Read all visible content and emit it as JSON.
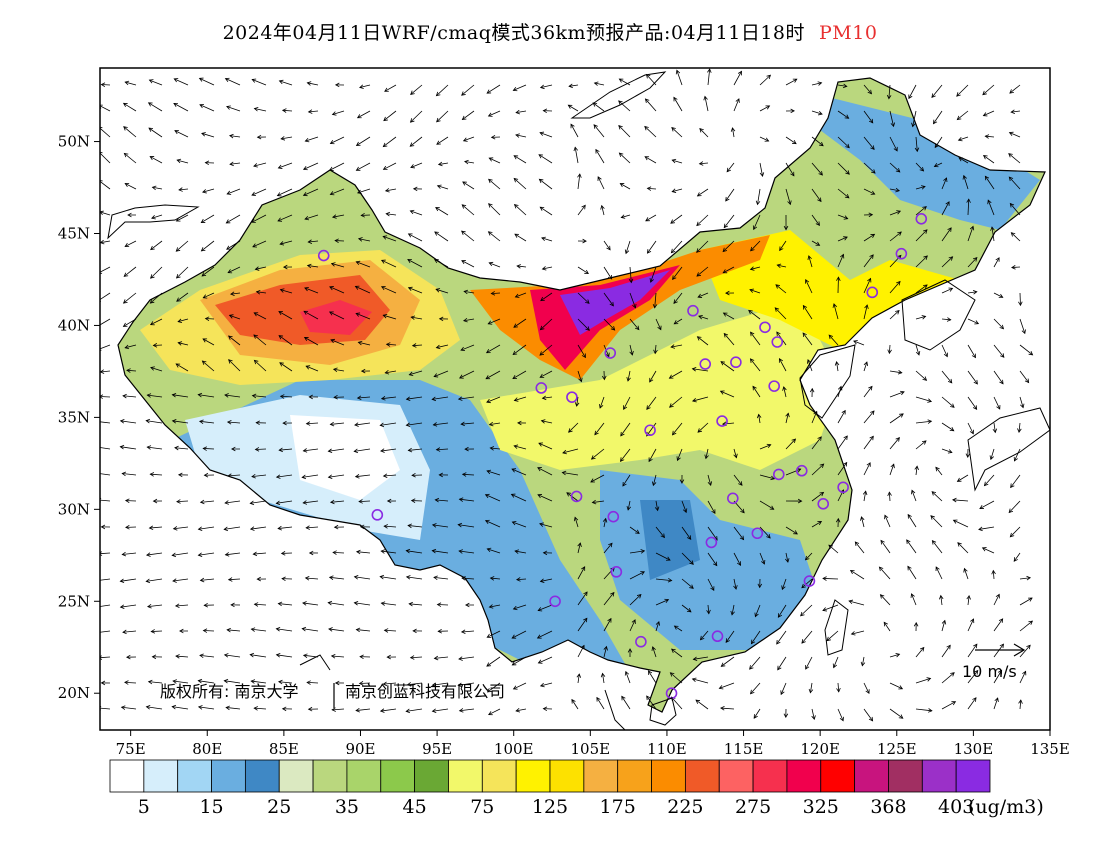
{
  "title": {
    "text": "2024年04月11日WRF/cmaq模式36km预报产品:04月11日18时",
    "variable": "PM10"
  },
  "map": {
    "lon_range": [
      73,
      135
    ],
    "lat_range": [
      18,
      54
    ],
    "lon_ticks": [
      "75E",
      "80E",
      "85E",
      "90E",
      "95E",
      "100E",
      "105E",
      "110E",
      "115E",
      "120E",
      "125E",
      "130E",
      "135E"
    ],
    "lat_ticks": [
      "20N",
      "25N",
      "30N",
      "35N",
      "40N",
      "45N",
      "50N"
    ],
    "copyright": "版权所有: 南京大学",
    "copyright_company": "南京创蓝科技有限公司",
    "wind_scale_label": "10 m/s"
  },
  "colorbar": {
    "colors": [
      "#ffffff",
      "#d6eefb",
      "#a2d6f4",
      "#6aaee0",
      "#3f88c5",
      "#dbe9c1",
      "#bad77e",
      "#a9d46a",
      "#8cc94b",
      "#6aa834",
      "#f2f86a",
      "#f5e45a",
      "#fff200",
      "#fde100",
      "#f5b041",
      "#f7a21b",
      "#fb8c00",
      "#f05a28",
      "#fd6262",
      "#f6304e",
      "#f1004d",
      "#ff0000",
      "#c8147e",
      "#a12f62",
      "#9b30c8",
      "#8a2be2"
    ],
    "labels": [
      "5",
      "15",
      "25",
      "35",
      "45",
      "75",
      "125",
      "175",
      "225",
      "275",
      "325",
      "368",
      "403"
    ],
    "unit": "(ug/m3)"
  },
  "cities": [
    {
      "lon": 87.6,
      "lat": 43.8
    },
    {
      "lon": 126.6,
      "lat": 45.8
    },
    {
      "lon": 125.3,
      "lat": 43.9
    },
    {
      "lon": 123.4,
      "lat": 41.8
    },
    {
      "lon": 111.7,
      "lat": 40.8
    },
    {
      "lon": 116.4,
      "lat": 39.9
    },
    {
      "lon": 117.2,
      "lat": 39.1
    },
    {
      "lon": 114.5,
      "lat": 38.0
    },
    {
      "lon": 112.5,
      "lat": 37.9
    },
    {
      "lon": 106.3,
      "lat": 38.5
    },
    {
      "lon": 101.8,
      "lat": 36.6
    },
    {
      "lon": 103.8,
      "lat": 36.1
    },
    {
      "lon": 117.0,
      "lat": 36.7
    },
    {
      "lon": 113.6,
      "lat": 34.8
    },
    {
      "lon": 108.9,
      "lat": 34.3
    },
    {
      "lon": 117.3,
      "lat": 31.9
    },
    {
      "lon": 118.8,
      "lat": 32.1
    },
    {
      "lon": 121.5,
      "lat": 31.2
    },
    {
      "lon": 120.2,
      "lat": 30.3
    },
    {
      "lon": 114.3,
      "lat": 30.6
    },
    {
      "lon": 104.1,
      "lat": 30.7
    },
    {
      "lon": 106.5,
      "lat": 29.6
    },
    {
      "lon": 91.1,
      "lat": 29.7
    },
    {
      "lon": 112.9,
      "lat": 28.2
    },
    {
      "lon": 115.9,
      "lat": 28.7
    },
    {
      "lon": 106.7,
      "lat": 26.6
    },
    {
      "lon": 119.3,
      "lat": 26.1
    },
    {
      "lon": 102.7,
      "lat": 25.0
    },
    {
      "lon": 113.3,
      "lat": 23.1
    },
    {
      "lon": 108.3,
      "lat": 22.8
    },
    {
      "lon": 110.3,
      "lat": 20.0
    }
  ]
}
